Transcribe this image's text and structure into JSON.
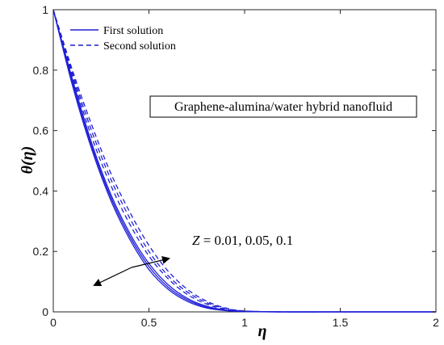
{
  "chart_data": {
    "type": "line",
    "xlabel": "η",
    "ylabel": "θ(η)",
    "xlim": [
      0,
      2
    ],
    "ylim": [
      0,
      1
    ],
    "x_ticks": [
      "0",
      "0.5",
      "1",
      "1.5",
      "2"
    ],
    "y_ticks": [
      "0",
      "0.2",
      "0.4",
      "0.6",
      "0.8",
      "1"
    ],
    "grid": false,
    "legend_position": "top-left",
    "legend": [
      {
        "label": "First solution",
        "style": "solid"
      },
      {
        "label": "Second solution",
        "style": "dashed"
      }
    ],
    "annotation": "Graphene-alumina/water hybrid nanofluid",
    "parameter_label": {
      "var": "Z",
      "values_text": " = 0.01, 0.05, 0.1"
    },
    "line_color": "#1f1fd6",
    "series": [
      {
        "legend_group": "First solution",
        "style": "solid",
        "x": [
          0,
          0.1,
          0.2,
          0.3,
          0.4,
          0.5,
          0.6,
          0.7,
          0.8,
          0.9,
          1.0,
          1.2,
          1.5,
          2.0
        ],
        "y": [
          1,
          0.75,
          0.54,
          0.37,
          0.24,
          0.14,
          0.075,
          0.035,
          0.013,
          0.004,
          0.001,
          0,
          0,
          0
        ]
      },
      {
        "legend_group": "First solution",
        "style": "solid",
        "x": [
          0,
          0.1,
          0.2,
          0.3,
          0.4,
          0.5,
          0.6,
          0.7,
          0.8,
          0.9,
          1.0,
          1.2,
          1.5,
          2.0
        ],
        "y": [
          1,
          0.76,
          0.55,
          0.38,
          0.25,
          0.15,
          0.082,
          0.04,
          0.016,
          0.005,
          0.001,
          0,
          0,
          0
        ]
      },
      {
        "legend_group": "First solution",
        "style": "solid",
        "x": [
          0,
          0.1,
          0.2,
          0.3,
          0.4,
          0.5,
          0.6,
          0.7,
          0.8,
          0.9,
          1.0,
          1.2,
          1.5,
          2.0
        ],
        "y": [
          1,
          0.77,
          0.56,
          0.39,
          0.26,
          0.16,
          0.09,
          0.045,
          0.019,
          0.006,
          0.002,
          0,
          0,
          0
        ]
      },
      {
        "legend_group": "Second solution",
        "style": "dashed",
        "x": [
          0,
          0.1,
          0.2,
          0.3,
          0.4,
          0.5,
          0.6,
          0.7,
          0.8,
          0.9,
          1.0,
          1.2,
          1.5,
          2.0
        ],
        "y": [
          1,
          0.78,
          0.58,
          0.42,
          0.29,
          0.185,
          0.11,
          0.058,
          0.026,
          0.009,
          0.002,
          0,
          0,
          0
        ]
      },
      {
        "legend_group": "Second solution",
        "style": "dashed",
        "x": [
          0,
          0.1,
          0.2,
          0.3,
          0.4,
          0.5,
          0.6,
          0.7,
          0.8,
          0.9,
          1.0,
          1.2,
          1.5,
          2.0
        ],
        "y": [
          1,
          0.79,
          0.6,
          0.44,
          0.31,
          0.2,
          0.12,
          0.066,
          0.031,
          0.011,
          0.003,
          0,
          0,
          0
        ]
      },
      {
        "legend_group": "Second solution",
        "style": "dashed",
        "x": [
          0,
          0.1,
          0.2,
          0.3,
          0.4,
          0.5,
          0.6,
          0.7,
          0.8,
          0.9,
          1.0,
          1.2,
          1.5,
          2.0
        ],
        "y": [
          1,
          0.8,
          0.62,
          0.46,
          0.33,
          0.22,
          0.135,
          0.075,
          0.036,
          0.013,
          0.003,
          0,
          0,
          0
        ]
      }
    ]
  }
}
